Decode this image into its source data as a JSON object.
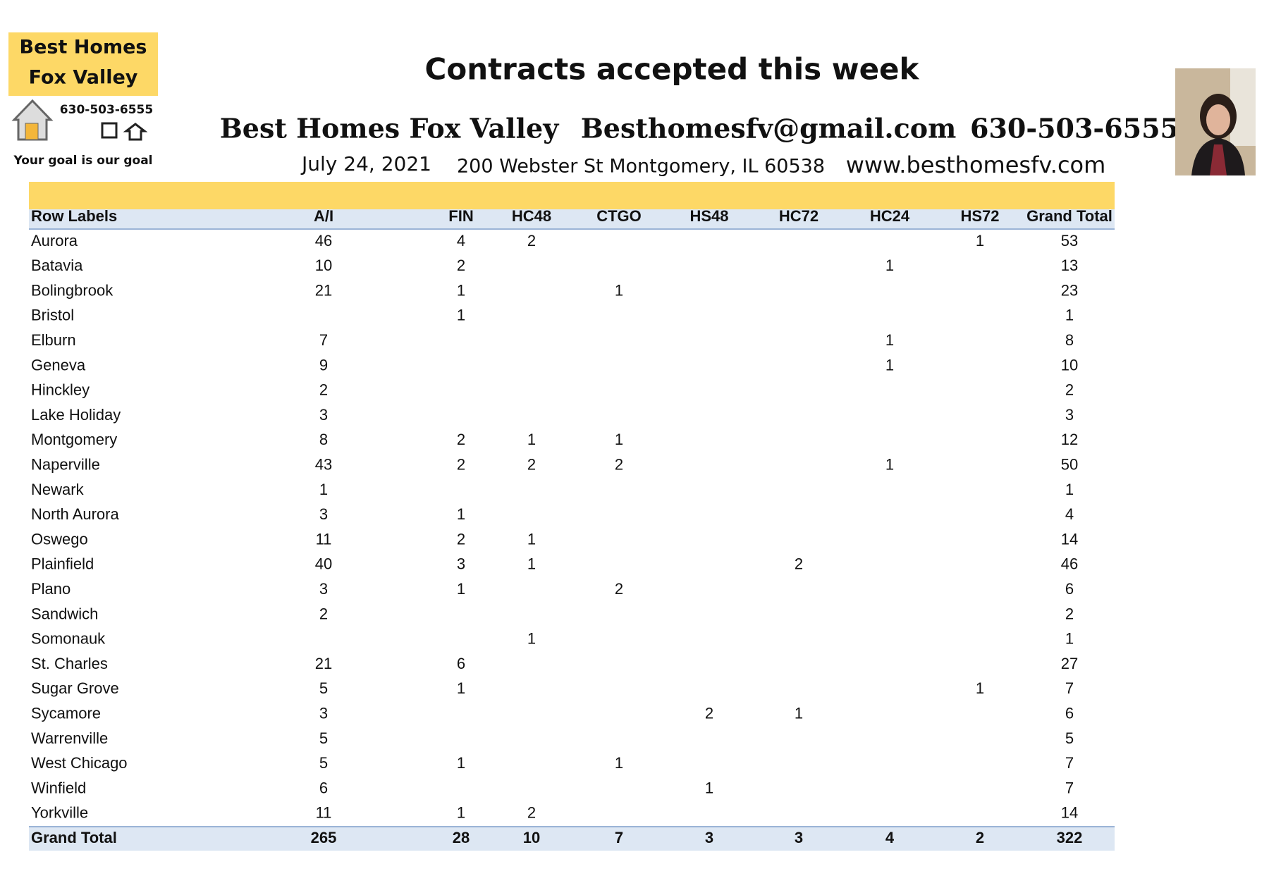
{
  "logo": {
    "line1": "Best Homes",
    "line2": "Fox Valley",
    "phone": "630-503-6555",
    "tagline": "Your goal is our goal"
  },
  "header": {
    "title": "Contracts accepted this week",
    "company": "Best Homes Fox Valley",
    "email": "Besthomesfv@gmail.com",
    "phone": "630-503-6555",
    "date": "July 24, 2021",
    "address": "200 Webster St Montgomery, IL 60538",
    "website": "www.besthomesfv.com"
  },
  "table": {
    "columns": [
      "Row Labels",
      "A/I",
      "FIN",
      "HC48",
      "CTGO",
      "HS48",
      "HC72",
      "HC24",
      "HS72",
      "Grand Total"
    ],
    "rows": [
      {
        "label": "Aurora",
        "values": [
          46,
          4,
          2,
          null,
          null,
          null,
          null,
          1,
          53
        ]
      },
      {
        "label": "Batavia",
        "values": [
          10,
          2,
          null,
          null,
          null,
          null,
          1,
          null,
          13
        ]
      },
      {
        "label": "Bolingbrook",
        "values": [
          21,
          1,
          null,
          1,
          null,
          null,
          null,
          null,
          23
        ]
      },
      {
        "label": "Bristol",
        "values": [
          null,
          1,
          null,
          null,
          null,
          null,
          null,
          null,
          1
        ]
      },
      {
        "label": "Elburn",
        "values": [
          7,
          null,
          null,
          null,
          null,
          null,
          1,
          null,
          8
        ]
      },
      {
        "label": "Geneva",
        "values": [
          9,
          null,
          null,
          null,
          null,
          null,
          1,
          null,
          10
        ]
      },
      {
        "label": "Hinckley",
        "values": [
          2,
          null,
          null,
          null,
          null,
          null,
          null,
          null,
          2
        ]
      },
      {
        "label": "Lake Holiday",
        "values": [
          3,
          null,
          null,
          null,
          null,
          null,
          null,
          null,
          3
        ]
      },
      {
        "label": "Montgomery",
        "values": [
          8,
          2,
          1,
          1,
          null,
          null,
          null,
          null,
          12
        ]
      },
      {
        "label": "Naperville",
        "values": [
          43,
          2,
          2,
          2,
          null,
          null,
          1,
          null,
          50
        ]
      },
      {
        "label": "Newark",
        "values": [
          1,
          null,
          null,
          null,
          null,
          null,
          null,
          null,
          1
        ]
      },
      {
        "label": "North Aurora",
        "values": [
          3,
          1,
          null,
          null,
          null,
          null,
          null,
          null,
          4
        ]
      },
      {
        "label": "Oswego",
        "values": [
          11,
          2,
          1,
          null,
          null,
          null,
          null,
          null,
          14
        ]
      },
      {
        "label": "Plainfield",
        "values": [
          40,
          3,
          1,
          null,
          null,
          2,
          null,
          null,
          46
        ]
      },
      {
        "label": "Plano",
        "values": [
          3,
          1,
          null,
          2,
          null,
          null,
          null,
          null,
          6
        ]
      },
      {
        "label": "Sandwich",
        "values": [
          2,
          null,
          null,
          null,
          null,
          null,
          null,
          null,
          2
        ]
      },
      {
        "label": "Somonauk",
        "values": [
          null,
          null,
          1,
          null,
          null,
          null,
          null,
          null,
          1
        ]
      },
      {
        "label": "St. Charles",
        "values": [
          21,
          6,
          null,
          null,
          null,
          null,
          null,
          null,
          27
        ]
      },
      {
        "label": "Sugar Grove",
        "values": [
          5,
          1,
          null,
          null,
          null,
          null,
          null,
          1,
          7
        ]
      },
      {
        "label": "Sycamore",
        "values": [
          3,
          null,
          null,
          null,
          2,
          1,
          null,
          null,
          6
        ]
      },
      {
        "label": "Warrenville",
        "values": [
          5,
          null,
          null,
          null,
          null,
          null,
          null,
          null,
          5
        ]
      },
      {
        "label": "West Chicago",
        "values": [
          5,
          1,
          null,
          1,
          null,
          null,
          null,
          null,
          7
        ]
      },
      {
        "label": "Winfield",
        "values": [
          6,
          null,
          null,
          null,
          1,
          null,
          null,
          null,
          7
        ]
      },
      {
        "label": "Yorkville",
        "values": [
          11,
          1,
          2,
          null,
          null,
          null,
          null,
          null,
          14
        ]
      }
    ],
    "total": {
      "label": "Grand Total",
      "values": [
        265,
        28,
        10,
        7,
        3,
        3,
        4,
        2,
        322
      ]
    }
  }
}
